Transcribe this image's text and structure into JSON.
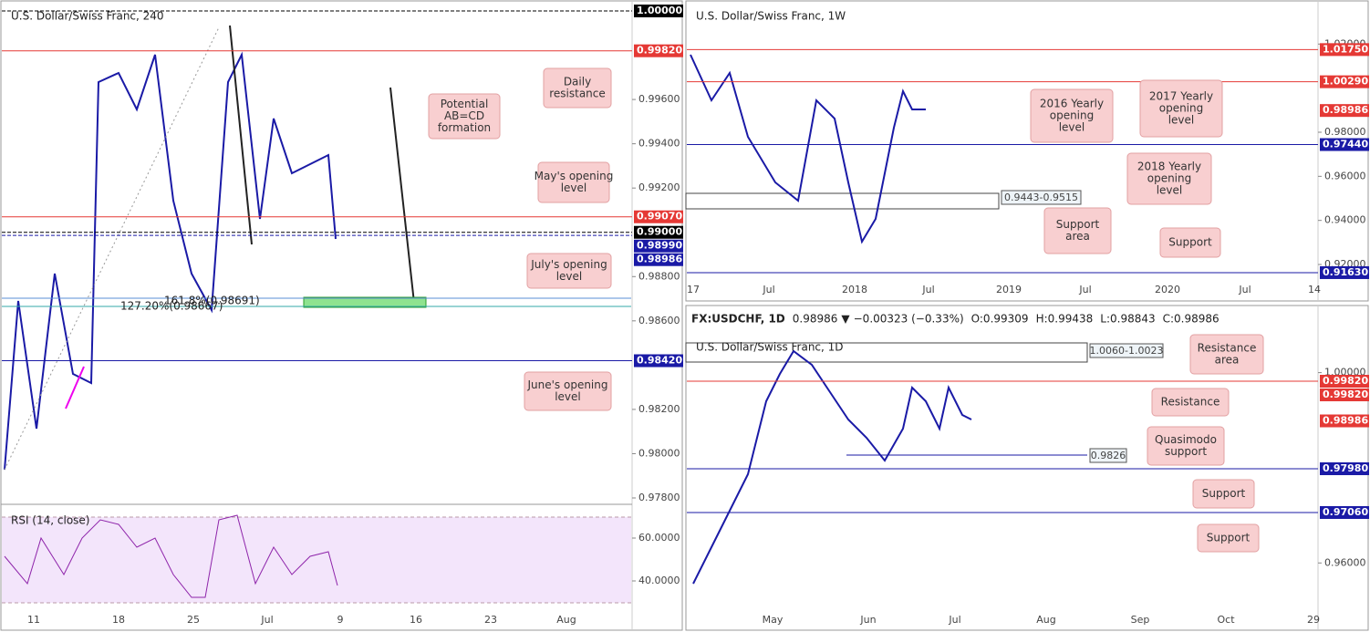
{
  "panels": [
    {
      "title": "U.S. Dollar/Swiss Franc, 240",
      "ticks": [
        "0.99600",
        "0.99400",
        "0.99200",
        "0.98800",
        "0.98600",
        "0.98200",
        "0.98000",
        "0.97800"
      ],
      "price_labels": [
        {
          "label": "1.00000",
          "color": "#000000",
          "line": "dashed"
        },
        {
          "label": "0.99820",
          "color": "#e53935",
          "line": "solid"
        },
        {
          "label": "0.99070",
          "color": "#e53935",
          "line": "solid"
        },
        {
          "label": "0.99000",
          "color": "#000000",
          "line": "dashed"
        },
        {
          "label": "0.98990",
          "color": "#1a1aa6"
        },
        {
          "label": "0.98986",
          "color": "#1a1aa6",
          "line": "dashed"
        },
        {
          "label": "0.98420",
          "color": "#1a1aa6",
          "line": "solid"
        }
      ],
      "x_labels": [
        "11",
        "18",
        "25",
        "Jul",
        "9",
        "16",
        "23",
        "Aug"
      ],
      "callouts": [
        [
          "Daily",
          "resistance"
        ],
        [
          "Potential",
          "AB=CD",
          "formation"
        ],
        [
          "May's opening",
          "level"
        ],
        [
          "July's opening",
          "level"
        ],
        [
          "June's opening",
          "level"
        ]
      ],
      "annotations": [
        "161.8%(0.98691)",
        "127.20%(0.98667)"
      ],
      "rsi": {
        "title": "RSI (14, close)",
        "ticks": [
          "60.0000",
          "40.0000"
        ]
      }
    },
    {
      "title": "U.S. Dollar/Swiss Franc, 1W",
      "ticks": [
        "1.02000",
        "0.98000",
        "0.96000",
        "0.94000",
        "0.92000"
      ],
      "price_labels": [
        {
          "label": "1.01750",
          "color": "#e53935",
          "line": "solid"
        },
        {
          "label": "1.00290",
          "color": "#e53935",
          "line": "solid"
        },
        {
          "label": "0.98986",
          "color": "#e53935"
        },
        {
          "label": "0.97440",
          "color": "#1a1aa6",
          "line": "solid"
        },
        {
          "label": "0.91630",
          "color": "#1a1aa6",
          "line": "solid"
        }
      ],
      "x_labels": [
        "17",
        "Jul",
        "2018",
        "Jul",
        "2019",
        "Jul",
        "2020",
        "Jul",
        "14"
      ],
      "callouts": [
        [
          "2016 Yearly",
          "opening",
          "level"
        ],
        [
          "2017 Yearly",
          "opening",
          "level"
        ],
        [
          "2018 Yearly",
          "opening",
          "level"
        ],
        [
          "Support",
          "area"
        ],
        [
          "Support"
        ]
      ],
      "annotations": [
        "0.9443-0.9515"
      ]
    },
    {
      "header": [
        "FX:USDCHF, 1D",
        "0.98986",
        "▼",
        "−0.00323 (−0.33%)",
        "O:0.99309",
        "H:0.99438",
        "L:0.98843",
        "C:0.98986"
      ],
      "title": "U.S. Dollar/Swiss Franc, 1D",
      "ticks": [
        "1.00000",
        "0.96000"
      ],
      "price_labels": [
        {
          "label": "0.99820",
          "color": "#e53935",
          "line": "solid"
        },
        {
          "label": "0.99820",
          "color": "#e53935"
        },
        {
          "label": "0.98986",
          "color": "#e53935"
        },
        {
          "label": "0.97980",
          "color": "#1a1aa6",
          "line": "solid"
        },
        {
          "label": "0.97060",
          "color": "#1a1aa6",
          "line": "solid"
        }
      ],
      "x_labels": [
        "May",
        "Jun",
        "Jul",
        "Aug",
        "Sep",
        "Oct",
        "29"
      ],
      "callouts": [
        [
          "Resistance",
          "area"
        ],
        [
          "Resistance"
        ],
        [
          "Quasimodo",
          "support"
        ],
        [
          "Support"
        ],
        [
          "Support"
        ]
      ],
      "annotations": [
        "1.0060-1.0023",
        "0.9826"
      ]
    }
  ]
}
